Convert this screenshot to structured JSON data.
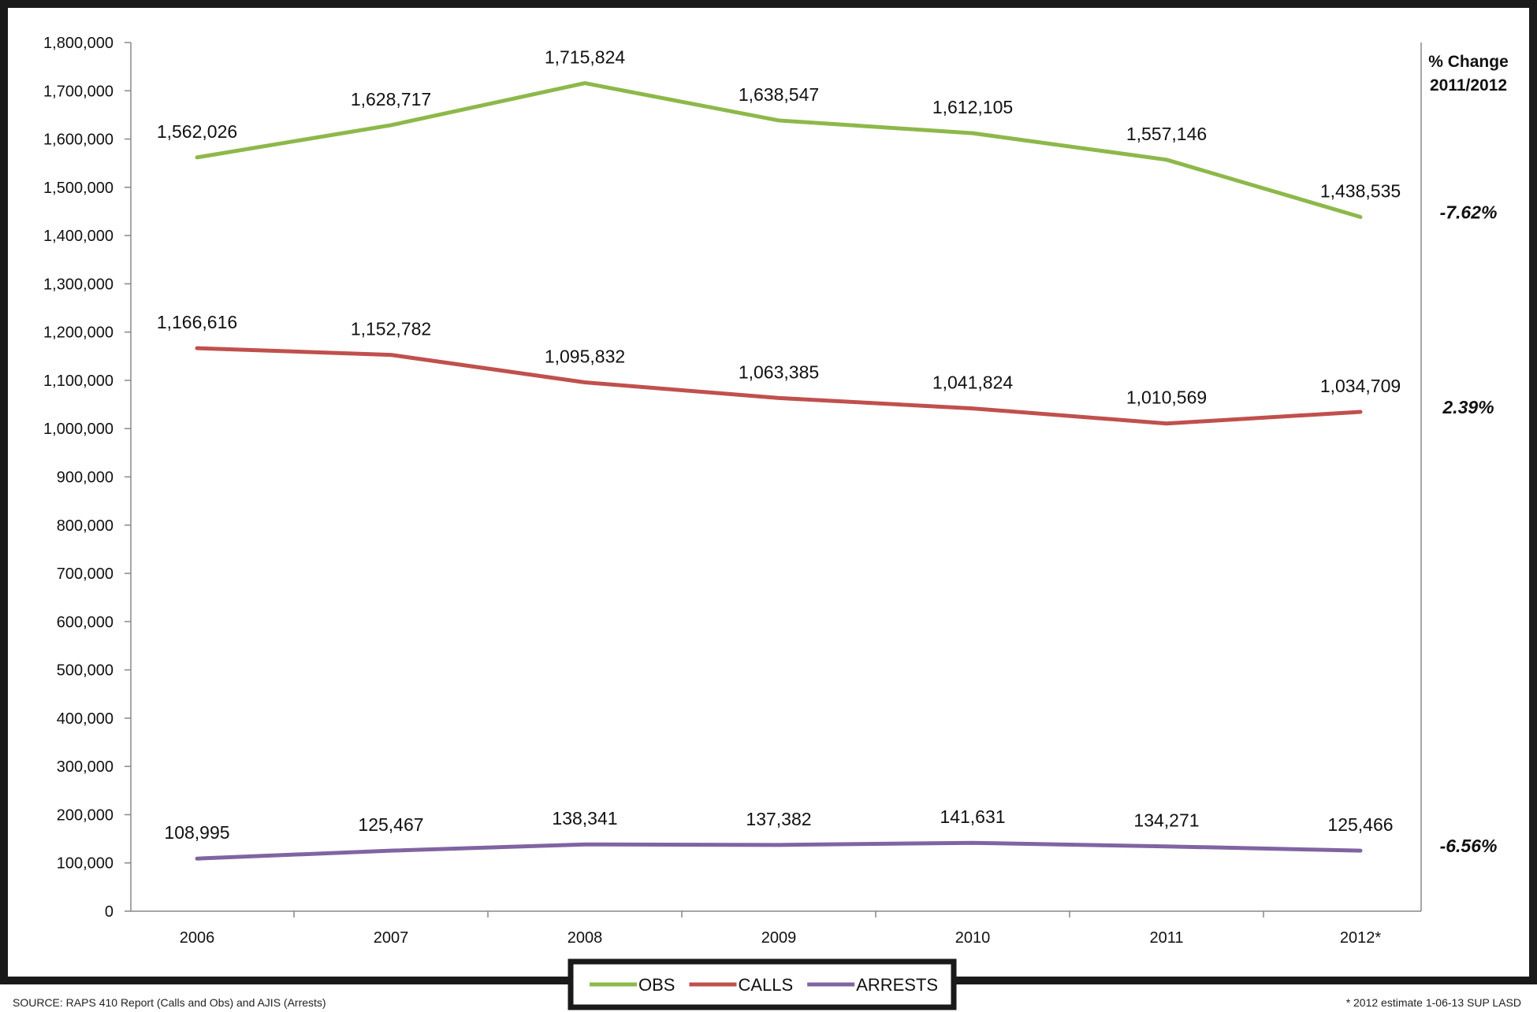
{
  "chart_data": {
    "type": "line",
    "categories": [
      "2006",
      "2007",
      "2008",
      "2009",
      "2010",
      "2011",
      "2012*"
    ],
    "series": [
      {
        "name": "OBS",
        "values": [
          1562026,
          1628717,
          1715824,
          1638547,
          1612105,
          1557146,
          1438535
        ],
        "labels": [
          "1,562,026",
          "1,628,717",
          "1,715,824",
          "1,638,547",
          "1,612,105",
          "1,557,146",
          "1,438,535"
        ],
        "color": "#8DB84A",
        "pct_change": "-7.62%"
      },
      {
        "name": "CALLS",
        "values": [
          1166616,
          1152782,
          1095832,
          1063385,
          1041824,
          1010569,
          1034709
        ],
        "labels": [
          "1,166,616",
          "1,152,782",
          "1,095,832",
          "1,063,385",
          "1,041,824",
          "1,010,569",
          "1,034,709"
        ],
        "color": "#C0504D",
        "pct_change": "2.39%"
      },
      {
        "name": "ARRESTS",
        "values": [
          108995,
          125467,
          138341,
          137382,
          141631,
          134271,
          125466
        ],
        "labels": [
          "108,995",
          "125,467",
          "138,341",
          "137,382",
          "141,631",
          "134,271",
          "125,466"
        ],
        "color": "#8064A2",
        "pct_change": "-6.56%"
      }
    ],
    "ylim": [
      0,
      1800000
    ],
    "y_ticks": [
      "0",
      "100,000",
      "200,000",
      "300,000",
      "400,000",
      "500,000",
      "600,000",
      "700,000",
      "800,000",
      "900,000",
      "1,000,000",
      "1,100,000",
      "1,200,000",
      "1,300,000",
      "1,400,000",
      "1,500,000",
      "1,600,000",
      "1,700,000",
      "1,800,000"
    ],
    "pct_header": [
      "% Change",
      "2011/2012"
    ],
    "grid": false,
    "legend_position": "bottom"
  },
  "footer": {
    "source": "SOURCE: RAPS 410 Report (Calls and Obs) and AJIS (Arrests)",
    "estimate": "* 2012 estimate                1-06-13  SUP LASD"
  }
}
